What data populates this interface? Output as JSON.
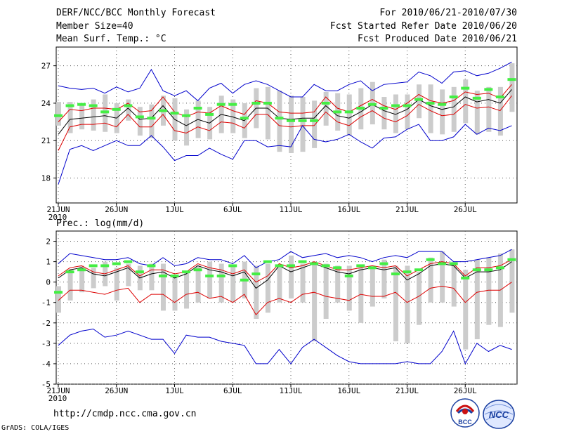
{
  "header": {
    "title": "DERF/NCC/BCC Monthly Forecast",
    "member_size": "Member Size=40",
    "variable": "Mean Surf. Temp.: °C",
    "period": "For 2010/06/21-2010/07/30",
    "start_date": "Fcst Started Refer Date 2010/06/20",
    "produced_date": "Fcst Produced Date 2010/06/21"
  },
  "footer": {
    "url": "http://cmdp.ncc.cma.gov.cn",
    "grads": "GrADS: COLA/IGES",
    "logo_bcc": "BCC",
    "logo_ncc": "NCC"
  },
  "colors": {
    "max": "#0000cc",
    "upper": "#dd0000",
    "mean": "#000000",
    "bar": "#cccccc",
    "obs": "#44ee44"
  },
  "chart_data": [
    {
      "type": "line",
      "title": "Mean Surf. Temp.: °C",
      "x_tick_labels": [
        "21JUN",
        "26JUN",
        "1JUL",
        "6JUL",
        "11JUL",
        "16JUL",
        "21JUL",
        "26JUL"
      ],
      "x_tick_days": [
        1,
        6,
        11,
        16,
        21,
        26,
        31,
        36
      ],
      "year_label": "2010",
      "ylim": [
        16,
        28.5
      ],
      "yticks": [
        18,
        21,
        24,
        27
      ],
      "days": 40,
      "series": [
        {
          "name": "max",
          "values": [
            25.4,
            25.2,
            25.1,
            25.2,
            24.8,
            25.3,
            24.9,
            25.2,
            26.7,
            25.0,
            24.6,
            25.0,
            24.2,
            25.2,
            25.6,
            24.8,
            25.5,
            25.8,
            25.5,
            25.0,
            24.5,
            24.5,
            25.5,
            25.0,
            25.0,
            25.5,
            25.8,
            25.0,
            25.5,
            25.6,
            25.7,
            26.5,
            26.2,
            25.6,
            26.5,
            26.6,
            26.2,
            26.4,
            26.8,
            27.3
          ]
        },
        {
          "name": "upper",
          "values": [
            22.5,
            23.5,
            23.4,
            23.6,
            23.6,
            23.5,
            24.0,
            23.3,
            23.4,
            24.5,
            23.3,
            22.9,
            23.3,
            23.2,
            23.8,
            23.4,
            23.1,
            24.2,
            24.0,
            23.3,
            23.2,
            23.2,
            23.3,
            24.5,
            23.6,
            23.3,
            23.8,
            24.3,
            23.8,
            23.5,
            24.0,
            24.7,
            24.2,
            24.0,
            24.2,
            24.9,
            24.7,
            24.8,
            24.4,
            25.5
          ]
        },
        {
          "name": "mean",
          "values": [
            21.5,
            22.7,
            22.8,
            22.9,
            23.0,
            22.8,
            23.6,
            22.7,
            22.8,
            23.8,
            22.7,
            22.2,
            22.7,
            22.4,
            23.1,
            22.9,
            22.6,
            23.6,
            23.6,
            22.8,
            22.7,
            22.8,
            22.8,
            23.8,
            23.0,
            22.8,
            23.3,
            23.9,
            23.4,
            23.1,
            23.5,
            24.3,
            23.8,
            23.5,
            23.7,
            24.5,
            24.1,
            24.3,
            24.0,
            25.1
          ]
        },
        {
          "name": "lower",
          "values": [
            20.2,
            22.1,
            22.3,
            22.3,
            22.4,
            22.1,
            23.1,
            22.1,
            22.1,
            23.1,
            21.8,
            21.6,
            22.1,
            21.8,
            22.5,
            22.4,
            22.0,
            23.1,
            23.1,
            22.2,
            22.1,
            22.2,
            22.2,
            23.3,
            22.5,
            22.2,
            22.9,
            23.4,
            22.8,
            22.5,
            23.0,
            23.9,
            23.4,
            23.0,
            23.1,
            23.9,
            23.6,
            23.7,
            23.4,
            24.6
          ]
        },
        {
          "name": "min",
          "values": [
            17.5,
            20.3,
            20.6,
            20.2,
            20.6,
            21.0,
            20.6,
            20.6,
            21.4,
            20.5,
            19.4,
            19.8,
            19.8,
            20.4,
            19.9,
            19.5,
            21.0,
            21.0,
            20.5,
            20.6,
            20.5,
            22.2,
            21.1,
            20.9,
            21.1,
            21.5,
            20.9,
            20.4,
            21.2,
            21.3,
            21.9,
            22.3,
            21.0,
            21.0,
            21.3,
            22.3,
            21.5,
            22.0,
            21.8,
            22.2
          ]
        },
        {
          "name": "range_low",
          "values": [
            22.2,
            21.6,
            21.9,
            21.8,
            21.7,
            21.6,
            22.6,
            21.4,
            21.2,
            22.2,
            21.0,
            20.6,
            21.2,
            21.1,
            21.6,
            21.6,
            21.2,
            22.0,
            21.1,
            20.1,
            20.0,
            20.1,
            20.4,
            22.2,
            21.8,
            21.4,
            21.9,
            22.3,
            21.9,
            21.6,
            21.9,
            22.8,
            21.6,
            21.5,
            21.7,
            22.4,
            21.5,
            21.7,
            21.4,
            23.3
          ]
        },
        {
          "name": "range_high",
          "values": [
            24.1,
            24.1,
            24.0,
            24.3,
            24.7,
            24.0,
            24.3,
            23.7,
            23.9,
            24.6,
            24.4,
            23.5,
            24.2,
            23.7,
            24.6,
            24.3,
            24.0,
            25.2,
            25.3,
            25.0,
            24.6,
            24.5,
            24.2,
            24.9,
            24.8,
            24.7,
            25.2,
            25.7,
            24.5,
            24.7,
            24.7,
            25.5,
            25.5,
            25.1,
            25.3,
            25.9,
            25.0,
            25.3,
            25.3,
            27.2
          ]
        },
        {
          "name": "observed",
          "values": [
            23.0,
            23.8,
            23.9,
            23.8,
            23.3,
            23.5,
            23.8,
            22.9,
            22.8,
            23.4,
            23.2,
            23.0,
            23.6,
            23.1,
            23.9,
            23.9,
            22.8,
            24.0,
            24.0,
            22.8,
            22.6,
            22.6,
            22.6,
            24.0,
            23.3,
            23.3,
            23.6,
            23.9,
            23.6,
            23.8,
            23.8,
            24.3,
            24.0,
            23.9,
            24.5,
            25.2,
            24.4,
            25.1,
            24.5,
            25.9
          ]
        }
      ]
    },
    {
      "type": "line",
      "title": "Prec.: log(mm/d)",
      "x_tick_labels": [
        "21JUN",
        "26JUN",
        "1JUL",
        "6JUL",
        "11JUL",
        "16JUL",
        "21JUL",
        "26JUL"
      ],
      "x_tick_days": [
        1,
        6,
        11,
        16,
        21,
        26,
        31,
        36
      ],
      "year_label": "2010",
      "ylim": [
        -5,
        2.5
      ],
      "yticks": [
        -5,
        -4,
        -3,
        -2,
        -1,
        0,
        1,
        2
      ],
      "days": 40,
      "series": [
        {
          "name": "max",
          "values": [
            0.9,
            1.4,
            1.3,
            1.2,
            1.1,
            1.1,
            1.2,
            0.9,
            0.8,
            1.2,
            0.8,
            0.9,
            1.2,
            1.1,
            1.1,
            0.9,
            1.3,
            0.7,
            1.0,
            1.1,
            1.5,
            1.2,
            1.3,
            1.4,
            1.2,
            1.3,
            1.2,
            1.0,
            1.2,
            1.3,
            1.2,
            1.5,
            1.5,
            1.5,
            1.0,
            1.0,
            1.1,
            1.2,
            1.3,
            1.6
          ]
        },
        {
          "name": "upper",
          "values": [
            0.3,
            0.7,
            0.8,
            0.5,
            0.4,
            0.6,
            0.8,
            0.3,
            0.6,
            0.6,
            0.4,
            0.5,
            0.9,
            0.7,
            0.6,
            0.4,
            0.6,
            0.0,
            0.3,
            0.9,
            0.7,
            0.8,
            1.0,
            0.8,
            0.6,
            0.6,
            0.7,
            0.8,
            0.7,
            0.8,
            0.3,
            0.6,
            0.9,
            1.0,
            0.9,
            0.3,
            0.7,
            0.7,
            0.8,
            1.1
          ]
        },
        {
          "name": "mean",
          "values": [
            0.2,
            0.6,
            0.7,
            0.4,
            0.3,
            0.5,
            0.7,
            0.2,
            0.4,
            0.5,
            0.2,
            0.4,
            0.8,
            0.6,
            0.5,
            0.3,
            0.5,
            -0.3,
            0.1,
            0.8,
            0.5,
            0.7,
            0.9,
            0.7,
            0.5,
            0.4,
            0.6,
            0.7,
            0.6,
            0.7,
            0.1,
            0.4,
            0.8,
            0.9,
            0.8,
            0.2,
            0.5,
            0.5,
            0.6,
            1.0
          ]
        },
        {
          "name": "lower",
          "values": [
            -0.9,
            -0.4,
            -0.4,
            -0.5,
            -0.6,
            -0.4,
            -0.3,
            -1.0,
            -0.6,
            -0.6,
            -1.0,
            -0.6,
            -0.5,
            -0.8,
            -0.7,
            -1.0,
            -0.6,
            -1.6,
            -1.0,
            -0.8,
            -1.0,
            -0.6,
            -0.5,
            -0.7,
            -0.8,
            -0.9,
            -0.6,
            -0.7,
            -0.7,
            -0.5,
            -1.0,
            -0.7,
            -0.3,
            -0.2,
            -0.3,
            -1.0,
            -0.5,
            -0.4,
            -0.4,
            0.0
          ]
        },
        {
          "name": "min",
          "values": [
            -3.1,
            -2.6,
            -2.4,
            -2.3,
            -2.7,
            -2.6,
            -2.4,
            -2.6,
            -2.8,
            -2.8,
            -3.5,
            -2.6,
            -2.7,
            -2.7,
            -2.9,
            -3.0,
            -3.1,
            -4.0,
            -4.0,
            -3.3,
            -4.0,
            -3.2,
            -2.8,
            -3.2,
            -3.6,
            -3.9,
            -4.0,
            -4.0,
            -4.0,
            -4.0,
            -3.9,
            -4.0,
            -4.0,
            -3.4,
            -2.4,
            -4.0,
            -3.0,
            -3.4,
            -3.1,
            -3.3
          ]
        },
        {
          "name": "range_low",
          "values": [
            -1.5,
            -0.9,
            -0.5,
            -0.3,
            -0.2,
            -0.9,
            -0.2,
            -0.4,
            -0.4,
            -1.4,
            -1.4,
            -1.3,
            -1.0,
            -0.8,
            -1.0,
            -1.0,
            -0.8,
            -1.8,
            -1.5,
            -1.0,
            -0.8,
            -1.0,
            -2.9,
            -1.8,
            -1.0,
            -1.4,
            -2.0,
            -1.2,
            -0.8,
            -2.9,
            -3.0,
            -2.1,
            -1.0,
            -1.0,
            -1.2,
            -3.3,
            -2.8,
            -2.1,
            -2.2,
            -1.5
          ]
        },
        {
          "name": "range_high",
          "values": [
            -0.2,
            0.6,
            0.8,
            0.7,
            1.0,
            0.7,
            0.9,
            0.8,
            0.9,
            0.9,
            0.3,
            0.5,
            0.8,
            1.0,
            0.9,
            0.8,
            1.0,
            0.8,
            0.9,
            0.8,
            1.3,
            0.9,
            1.0,
            0.9,
            0.8,
            0.8,
            0.7,
            0.8,
            1.1,
            0.8,
            0.8,
            0.5,
            1.2,
            1.5,
            1.0,
            0.6,
            1.1,
            1.2,
            1.4,
            1.6
          ]
        },
        {
          "name": "observed",
          "values": [
            -0.5,
            0.5,
            0.6,
            0.8,
            0.8,
            0.9,
            1.0,
            0.5,
            0.8,
            0.3,
            0.3,
            0.5,
            0.6,
            0.3,
            0.3,
            0.8,
            0.1,
            0.4,
            1.0,
            0.8,
            0.8,
            1.0,
            0.9,
            0.8,
            0.7,
            0.3,
            0.8,
            0.7,
            0.9,
            0.4,
            0.5,
            0.6,
            1.1,
            0.9,
            0.9,
            0.2,
            0.6,
            0.6,
            0.7,
            1.1
          ]
        }
      ]
    }
  ]
}
